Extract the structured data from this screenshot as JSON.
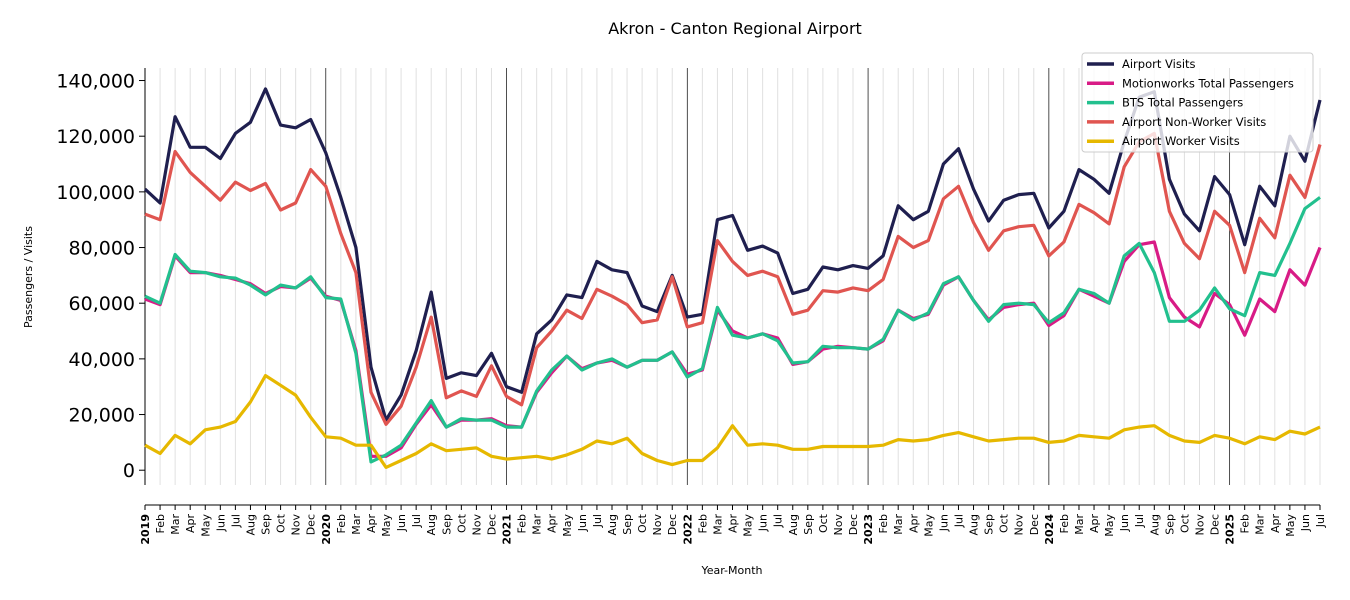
{
  "chart_data": {
    "type": "line",
    "title": "Akron - Canton Regional Airport",
    "xlabel": "Year-Month",
    "ylabel": "Passengers / Visits",
    "ylim": [
      -12500,
      144500
    ],
    "yticks": [
      0,
      20000,
      40000,
      60000,
      80000,
      100000,
      120000,
      140000
    ],
    "ytick_labels": [
      "0",
      "20,000",
      "40,000",
      "60,000",
      "80,000",
      "100,000",
      "120,000",
      "140,000"
    ],
    "years": [
      "2019",
      "2020",
      "2021",
      "2022",
      "2023",
      "2024",
      "2025"
    ],
    "month_labels": [
      "Jan",
      "Feb",
      "Mar",
      "Apr",
      "May",
      "Jun",
      "Jul",
      "Aug",
      "Sep",
      "Oct",
      "Nov",
      "Dec"
    ],
    "x_start": "2019-01",
    "x_count": 79,
    "grid": "vertical monthly, year separators",
    "legend_position": "top-right",
    "series": [
      {
        "name": "Airport Visits",
        "color": "#1f1f4f",
        "values": [
          101000,
          96000,
          127000,
          116000,
          116000,
          112000,
          121000,
          125000,
          137000,
          124000,
          123000,
          126000,
          114000,
          98000,
          80000,
          37000,
          18000,
          27000,
          43000,
          64000,
          33000,
          35000,
          34000,
          42000,
          30000,
          28000,
          49000,
          54000,
          63000,
          62000,
          75000,
          72000,
          71000,
          59000,
          57000,
          70000,
          55000,
          56000,
          90000,
          91500,
          79000,
          80500,
          78000,
          63500,
          65000,
          73000,
          72000,
          73500,
          72500,
          77000,
          95000,
          90000,
          93000,
          110000,
          115500,
          101000,
          89500,
          97000,
          99000,
          99500,
          87000,
          93000,
          108000,
          104500,
          99500,
          118000,
          134000,
          136000,
          104500,
          92000,
          86000,
          105500,
          99000,
          81000,
          102000,
          95000,
          120000,
          111000,
          133000
        ]
      },
      {
        "name": "Motionworks Total Passengers",
        "color": "#d81b86",
        "values": [
          61500,
          59500,
          77000,
          71000,
          71000,
          70000,
          68500,
          67000,
          63500,
          66000,
          65500,
          69000,
          62500,
          61000,
          43000,
          5000,
          5000,
          8000,
          16500,
          23500,
          15500,
          18000,
          18000,
          18500,
          16000,
          15500,
          28000,
          35000,
          41000,
          36500,
          38500,
          39500,
          37000,
          39500,
          39500,
          42500,
          34500,
          36000,
          57500,
          50000,
          47500,
          49000,
          47500,
          38000,
          39000,
          43500,
          44500,
          44000,
          43500,
          46500,
          57500,
          54500,
          56000,
          66500,
          69500,
          61000,
          54000,
          58500,
          59500,
          60000,
          52000,
          55500,
          65000,
          62500,
          60000,
          75000,
          81000,
          82000,
          62000,
          55000,
          51500,
          63500,
          59500,
          48500,
          61500,
          57000,
          72000,
          66500,
          80000
        ]
      },
      {
        "name": "BTS Total Passengers",
        "color": "#22c08e",
        "values": [
          62500,
          60000,
          77500,
          71500,
          71000,
          69500,
          69000,
          66500,
          63000,
          66500,
          65500,
          69500,
          62000,
          61500,
          42000,
          3000,
          5500,
          9000,
          17000,
          25000,
          15500,
          18500,
          18000,
          18000,
          15500,
          15500,
          28500,
          36000,
          41000,
          36000,
          38500,
          40000,
          37000,
          39500,
          39500,
          42500,
          33500,
          36500,
          58500,
          48500,
          47500,
          49000,
          46500,
          38500,
          39000,
          44500,
          44000,
          44000,
          43500,
          47000,
          57500,
          54000,
          56500,
          67000,
          69500,
          61000,
          53500,
          59500,
          60000,
          59500,
          53000,
          56500,
          65000,
          63500,
          60000,
          77000,
          81500,
          71000,
          53500,
          53500,
          57500,
          65500,
          58000,
          55500,
          71000,
          70000,
          81500,
          94000,
          98000
        ]
      },
      {
        "name": "Airport Non-Worker Visits",
        "color": "#e05550",
        "values": [
          92000,
          90000,
          114500,
          107000,
          102000,
          97000,
          103500,
          100500,
          103000,
          93500,
          96000,
          108000,
          102000,
          85000,
          71000,
          28000,
          16500,
          23000,
          37000,
          55000,
          26000,
          28500,
          26500,
          37500,
          26500,
          23500,
          44000,
          50000,
          57500,
          54500,
          65000,
          62500,
          59500,
          53000,
          54000,
          69500,
          51500,
          53000,
          82500,
          75000,
          70000,
          71500,
          69500,
          56000,
          57500,
          64500,
          64000,
          65500,
          64500,
          68500,
          84000,
          80000,
          82500,
          97500,
          102000,
          89000,
          79000,
          86000,
          87500,
          88000,
          77000,
          82000,
          95500,
          92500,
          88500,
          109000,
          118000,
          121000,
          93000,
          81500,
          76000,
          93000,
          88000,
          71000,
          90500,
          83500,
          106000,
          98000,
          117000
        ]
      },
      {
        "name": "Airport Worker Visits",
        "color": "#e6b800",
        "values": [
          9000,
          6000,
          12500,
          9500,
          14500,
          15500,
          17500,
          24500,
          34000,
          30500,
          27000,
          19000,
          12000,
          11500,
          9000,
          9000,
          1000,
          3500,
          6000,
          9500,
          7000,
          7500,
          8000,
          5000,
          4000,
          4500,
          5000,
          4000,
          5500,
          7500,
          10500,
          9500,
          11500,
          6000,
          3500,
          2000,
          3500,
          3500,
          8000,
          16000,
          9000,
          9500,
          9000,
          7500,
          7500,
          8500,
          8500,
          8500,
          8500,
          9000,
          11000,
          10500,
          11000,
          12500,
          13500,
          12000,
          10500,
          11000,
          11500,
          11500,
          10000,
          10500,
          12500,
          12000,
          11500,
          14500,
          15500,
          16000,
          12500,
          10500,
          10000,
          12500,
          11500,
          9500,
          12000,
          11000,
          14000,
          13000,
          15500
        ]
      }
    ]
  }
}
